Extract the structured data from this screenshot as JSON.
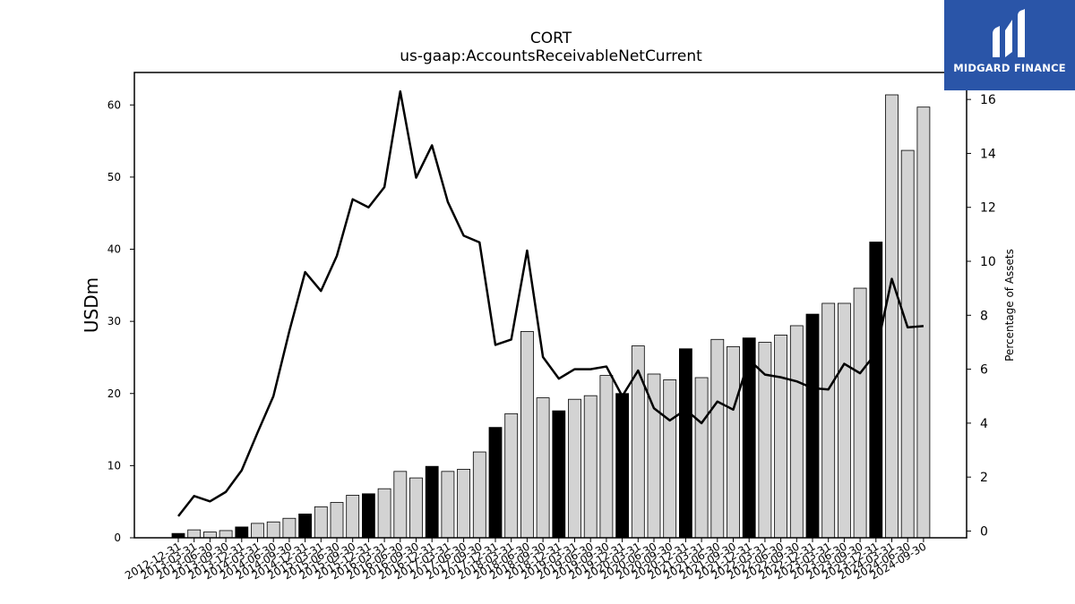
{
  "chart_data": {
    "type": "bar+line",
    "title": "CORT",
    "subtitle": "us-gaap:AccountsReceivableNetCurrent",
    "ylabel": "USDm",
    "ylabel_right": "Percentage of Assets",
    "ylim": [
      0,
      64.5
    ],
    "ylim_right": [
      -0.25,
      17
    ],
    "yticks": [
      0,
      10,
      20,
      30,
      40,
      50,
      60
    ],
    "yticks_right": [
      0,
      2,
      4,
      6,
      8,
      10,
      12,
      14,
      16
    ],
    "categories": [
      "2012-12-31",
      "2013-03-31",
      "2013-06-30",
      "2013-09-30",
      "2013-12-31",
      "2014-03-31",
      "2014-06-30",
      "2014-09-30",
      "2014-12-31",
      "2015-03-31",
      "2015-06-30",
      "2015-09-30",
      "2015-12-31",
      "2016-03-31",
      "2016-06-30",
      "2016-09-30",
      "2016-12-31",
      "2017-03-31",
      "2017-06-30",
      "2017-09-30",
      "2017-12-31",
      "2018-03-31",
      "2018-06-30",
      "2018-09-30",
      "2018-12-31",
      "2019-03-31",
      "2019-06-30",
      "2019-09-30",
      "2019-12-31",
      "2020-03-31",
      "2020-06-30",
      "2020-09-30",
      "2020-12-31",
      "2021-03-31",
      "2021-06-30",
      "2021-09-30",
      "2021-12-31",
      "2022-03-31",
      "2022-06-30",
      "2022-09-30",
      "2022-12-31",
      "2023-03-31",
      "2023-06-30",
      "2023-09-30",
      "2023-12-31",
      "2024-03-31",
      "2024-06-30",
      "2024-09-30"
    ],
    "series": [
      {
        "name": "",
        "type": "bar",
        "values": [
          0.6,
          1.1,
          0.8,
          1.0,
          1.5,
          2.0,
          2.2,
          2.7,
          3.3,
          4.3,
          4.9,
          5.9,
          6.1,
          6.8,
          9.2,
          8.3,
          9.9,
          9.2,
          9.5,
          11.9,
          15.3,
          17.2,
          28.6,
          19.4,
          17.6,
          19.2,
          19.7,
          22.5,
          20.0,
          26.6,
          22.7,
          21.9,
          26.2,
          22.2,
          27.5,
          26.5,
          27.7,
          27.1,
          28.1,
          29.4,
          31.0,
          32.5,
          32.5,
          34.6,
          41.0,
          61.4,
          53.7,
          59.7
        ],
        "year_end_color": "#000000",
        "quarter_color": "#d3d3d3"
      },
      {
        "name": "",
        "type": "line",
        "axis": "right",
        "color": "#000000",
        "values": [
          0.55,
          1.3,
          1.1,
          1.45,
          2.25,
          3.65,
          5.0,
          7.4,
          9.6,
          8.9,
          10.2,
          12.3,
          12.0,
          12.75,
          16.3,
          13.1,
          14.3,
          12.2,
          10.95,
          10.7,
          6.9,
          7.1,
          10.4,
          6.45,
          5.65,
          6.0,
          6.0,
          6.1,
          5.0,
          5.95,
          4.55,
          4.1,
          4.5,
          4.0,
          4.8,
          4.5,
          6.35,
          5.8,
          5.7,
          5.55,
          5.3,
          5.25,
          6.2,
          5.85,
          6.6,
          9.35,
          7.55,
          7.6
        ]
      }
    ],
    "year_end_flags": [
      1,
      0,
      0,
      0,
      1,
      0,
      0,
      0,
      1,
      0,
      0,
      0,
      1,
      0,
      0,
      0,
      1,
      0,
      0,
      0,
      1,
      0,
      0,
      0,
      1,
      0,
      0,
      0,
      1,
      0,
      0,
      0,
      1,
      0,
      0,
      0,
      1,
      0,
      0,
      0,
      1,
      0,
      0,
      0,
      1,
      0,
      0,
      0
    ]
  },
  "logo": {
    "text": "MIDGARD FINANCE",
    "icon": "midgard-m-icon",
    "background": "#2a55a8"
  }
}
